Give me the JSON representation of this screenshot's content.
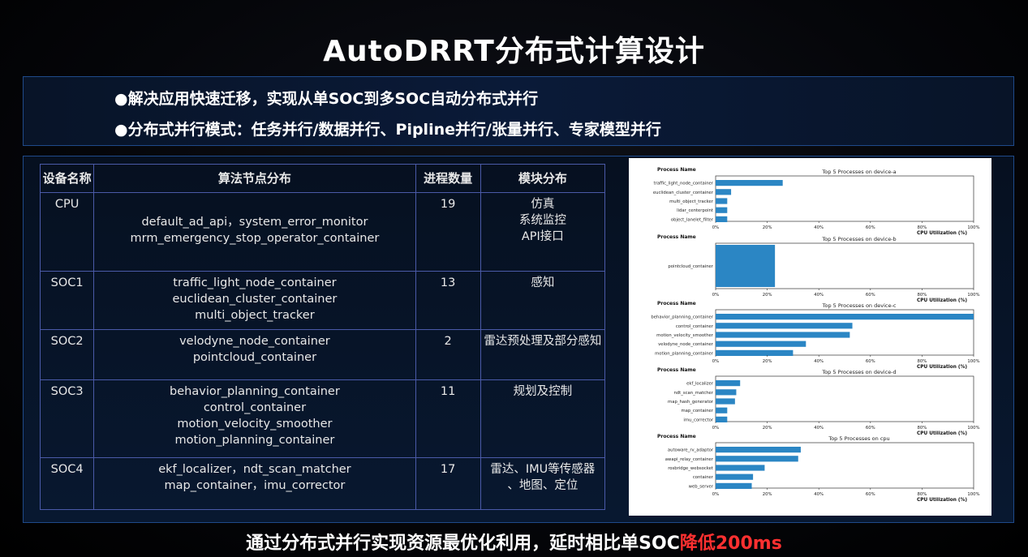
{
  "title": "AutoDRRT分布式计算设计",
  "bullets": [
    "●解决应用快速迁移，实现从单SOC到多SOC自动分布式并行",
    "●分布式并行模式：任务并行/数据并行、Pipline并行/张量并行、专家模型并行"
  ],
  "table": {
    "headers": [
      "设备名称",
      "算法节点分布",
      "进程数量",
      "模块分布"
    ],
    "rows": [
      {
        "device": "CPU",
        "nodes": [
          "default_ad_api，system_error_monitor",
          "mrm_emergency_stop_operator_container"
        ],
        "count": "19",
        "modules": [
          "仿真",
          "系统监控",
          "API接口"
        ]
      },
      {
        "device": "SOC1",
        "nodes": [
          "traffic_light_node_container",
          "euclidean_cluster_container",
          "multi_object_tracker"
        ],
        "count": "13",
        "modules": [
          "感知"
        ]
      },
      {
        "device": "SOC2",
        "nodes": [
          "velodyne_node_container",
          "pointcloud_container"
        ],
        "count": "2",
        "modules": [
          "雷达预处理及部分感知"
        ]
      },
      {
        "device": "SOC3",
        "nodes": [
          "behavior_planning_container",
          "control_container",
          "motion_velocity_smoother",
          "motion_planning_container"
        ],
        "count": "11",
        "modules": [
          "规划及控制"
        ]
      },
      {
        "device": "SOC4",
        "nodes": [
          "ekf_localizer，ndt_scan_matcher",
          "map_container，imu_corrector"
        ],
        "count": "17",
        "modules": [
          "雷达、IMU等传感器",
          "、地图、定位"
        ]
      }
    ]
  },
  "chart_data": [
    {
      "type": "bar",
      "orientation": "horizontal",
      "title": "Top 5 Processes on device-a",
      "ylabel": "Process Name",
      "xlabel": "CPU Utilization (%)",
      "xlim": [
        0,
        100
      ],
      "xticks": [
        "0%",
        "20%",
        "40%",
        "60%",
        "80%",
        "100%"
      ],
      "categories": [
        "traffic_light_node_container",
        "euclidean_cluster_container",
        "multi_object_tracker",
        "lidar_centerpoint",
        "object_lanelet_filter"
      ],
      "values": [
        26,
        6,
        4.5,
        4.5,
        4.5
      ]
    },
    {
      "type": "bar",
      "orientation": "horizontal",
      "title": "Top 5 Processes on device-b",
      "ylabel": "Process Name",
      "xlabel": "CPU Utilization (%)",
      "xlim": [
        0,
        100
      ],
      "xticks": [
        "0%",
        "20%",
        "40%",
        "60%",
        "80%",
        "100%"
      ],
      "categories": [
        "pointcloud_container"
      ],
      "values": [
        23
      ]
    },
    {
      "type": "bar",
      "orientation": "horizontal",
      "title": "Top 5 Processes on device-c",
      "ylabel": "Process Name",
      "xlabel": "CPU Utilization (%)",
      "xlim": [
        0,
        100
      ],
      "xticks": [
        "0%",
        "20%",
        "40%",
        "60%",
        "80%",
        "100%"
      ],
      "categories": [
        "behavior_planning_container",
        "control_container",
        "motion_velocity_smoother",
        "velodyne_node_container",
        "motion_planning_container"
      ],
      "values": [
        100,
        53,
        52,
        35,
        30
      ]
    },
    {
      "type": "bar",
      "orientation": "horizontal",
      "title": "Top 5 Processes on device-d",
      "ylabel": "Process Name",
      "xlabel": "CPU Utilization (%)",
      "xlim": [
        0,
        100
      ],
      "xticks": [
        "0%",
        "20%",
        "40%",
        "60%",
        "80%",
        "100%"
      ],
      "categories": [
        "ekf_localizer",
        "ndt_scan_matcher",
        "map_hash_generator",
        "map_container",
        "imu_corrector"
      ],
      "values": [
        9.5,
        8,
        7.5,
        4.5,
        4.5
      ]
    },
    {
      "type": "bar",
      "orientation": "horizontal",
      "title": "Top 5 Processes on cpu",
      "ylabel": "Process Name",
      "xlabel": "CPU Utilization (%)",
      "xlim": [
        0,
        100
      ],
      "xticks": [
        "0%",
        "20%",
        "40%",
        "60%",
        "80%",
        "100%"
      ],
      "categories": [
        "autoware_rv_adaptor",
        "awapi_relay_container",
        "rosbridge_websocket",
        "container",
        "web_server"
      ],
      "values": [
        33,
        32,
        19,
        14.5,
        14
      ]
    }
  ],
  "footer": {
    "text": "通过分布式并行实现资源最优化利用，延时相比单SOC",
    "highlight": "降低200ms"
  },
  "colors": {
    "bar": "#2b86c4",
    "highlight": "#ff3030"
  }
}
